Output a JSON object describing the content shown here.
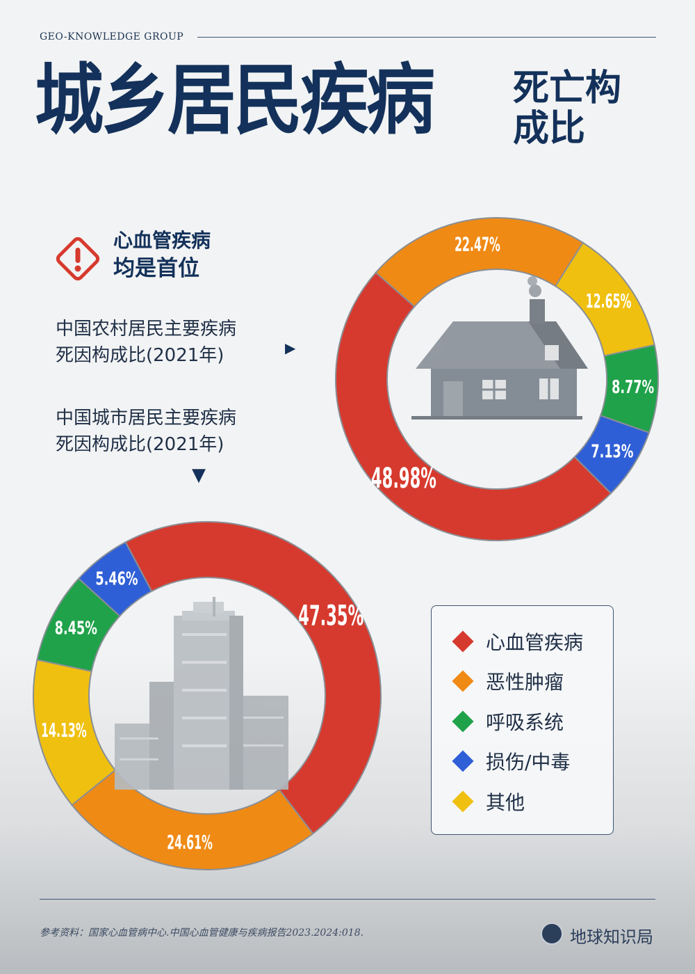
{
  "header": {
    "brand": "GEO-KNOWLEDGE GROUP",
    "title_main": "城乡居民疾病",
    "title_side": "死亡构成比"
  },
  "callout": {
    "line1": "心血管疾病",
    "line2": "均是首位"
  },
  "rural_desc": {
    "line1": "中国农村居民主要疾病",
    "line2": "死因构成比(2021年)"
  },
  "urban_desc": {
    "line1": "中国城市居民主要疾病",
    "line2": "死因构成比(2021年)"
  },
  "colors": {
    "cardio": "#d63a2e",
    "tumor": "#ef8a15",
    "respiratory": "#20a24a",
    "injury": "#2f5fd6",
    "other": "#f0c010"
  },
  "legend": [
    {
      "label": "心血管疾病",
      "color": "#d63a2e"
    },
    {
      "label": "恶性肿瘤",
      "color": "#ef8a15"
    },
    {
      "label": "呼吸系统",
      "color": "#20a24a"
    },
    {
      "label": "损伤/中毒",
      "color": "#2f5fd6"
    },
    {
      "label": "其他",
      "color": "#f0c010"
    }
  ],
  "chart_data": [
    {
      "type": "pie",
      "variant": "donut",
      "name": "rural",
      "categories": [
        "心血管疾病",
        "恶性肿瘤",
        "其他",
        "呼吸系统",
        "损伤/中毒"
      ],
      "values": [
        48.98,
        22.47,
        12.65,
        8.77,
        7.13
      ],
      "labels": [
        "48.98%",
        "22.47%",
        "12.65%",
        "8.77%",
        "7.13%"
      ]
    },
    {
      "type": "pie",
      "variant": "donut",
      "name": "urban",
      "categories": [
        "心血管疾病",
        "恶性肿瘤",
        "其他",
        "呼吸系统",
        "损伤/中毒"
      ],
      "values": [
        47.35,
        24.61,
        14.13,
        8.45,
        5.46
      ],
      "labels": [
        "47.35%",
        "24.61%",
        "14.13%",
        "8.45%",
        "5.46%"
      ]
    }
  ],
  "footer": {
    "source": "参考资料：国家心血管病中心.中国心血管健康与疾病报告2023.2024:018.",
    "logo": "地球知识局"
  }
}
